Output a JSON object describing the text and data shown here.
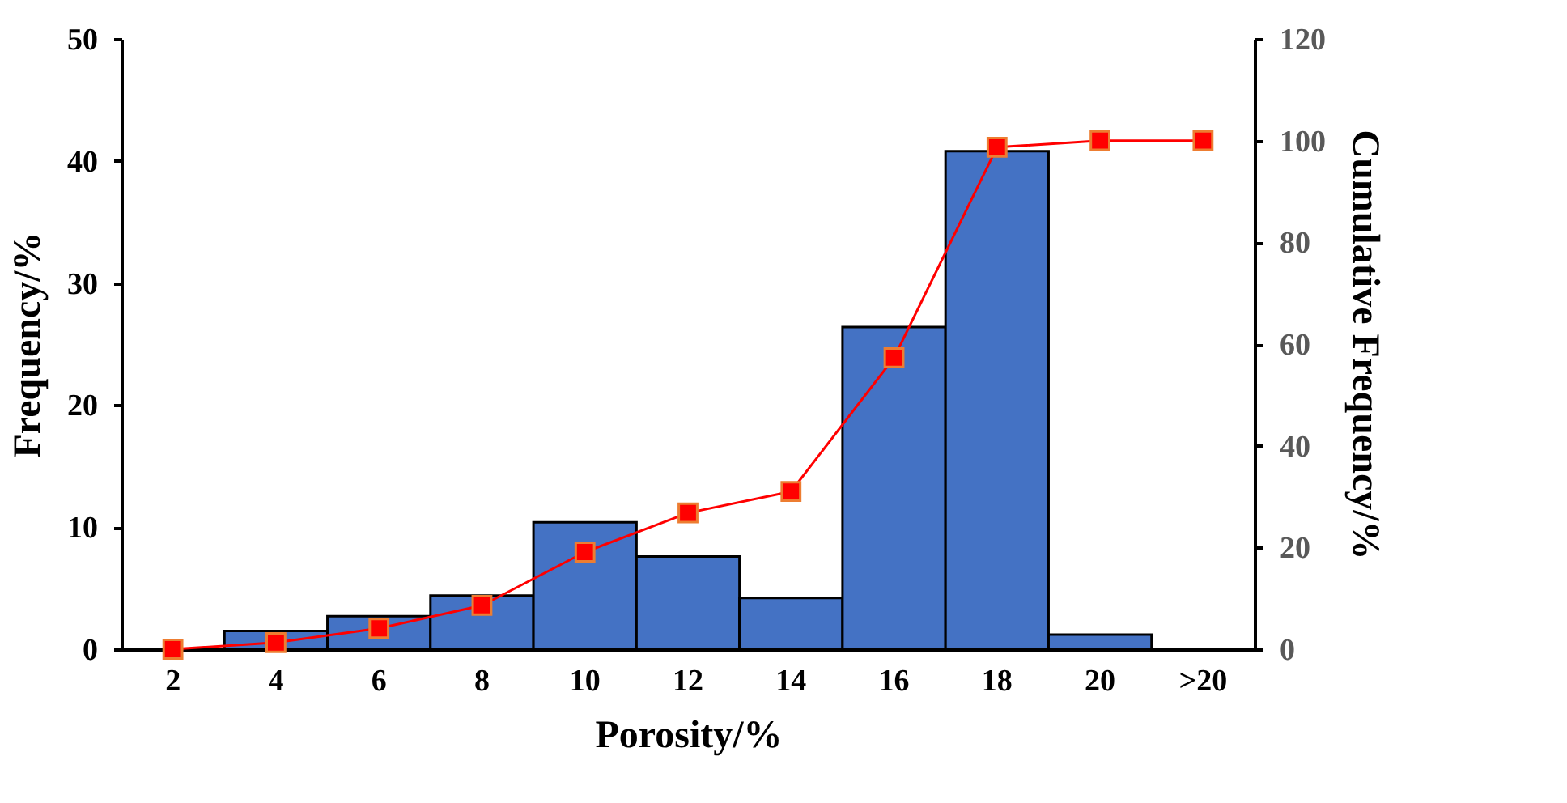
{
  "chart_data": {
    "type": "bar",
    "xlabel": "Porosity/%",
    "ylabel": "Frequency/%",
    "y2label": "Cumulative Frequency/%",
    "categories": [
      "2",
      "4",
      "6",
      "8",
      "10",
      "12",
      "14",
      "16",
      "18",
      "20",
      ">20"
    ],
    "series": [
      {
        "type": "bar",
        "color": "#4472c4",
        "values": [
          0,
          1.5,
          2.7,
          4.4,
          10.4,
          7.6,
          4.2,
          26.4,
          40.8,
          1.2,
          0
        ]
      },
      {
        "type": "line",
        "axis": "y2",
        "color": "#ff0000",
        "marker": "square",
        "values": [
          0,
          1.3,
          4.1,
          8.6,
          19.1,
          26.8,
          31,
          57.3,
          98.7,
          100,
          100
        ]
      }
    ],
    "ylim": [
      0,
      50
    ],
    "yticks": [
      0,
      10,
      20,
      30,
      40,
      50
    ],
    "y2lim": [
      0,
      120
    ],
    "y2ticks": [
      0,
      20,
      40,
      60,
      80,
      100,
      120
    ],
    "grid": false
  }
}
